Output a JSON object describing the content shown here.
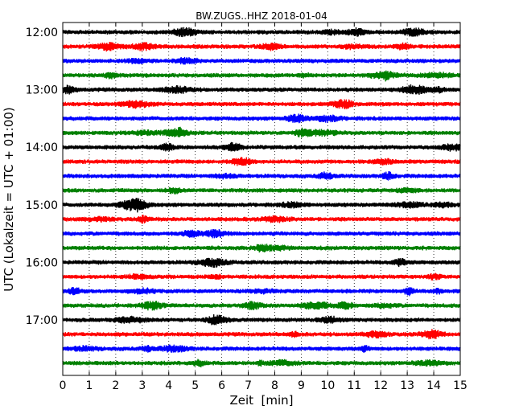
{
  "chart_data": {
    "type": "line",
    "title": "BW.ZUGS..HHZ 2018-01-04",
    "xlabel": "Zeit  [min]",
    "ylabel": "UTC (Lokalzeit = UTC + 01:00)",
    "xlim": [
      0,
      15
    ],
    "x_ticks": [
      "0",
      "1",
      "2",
      "3",
      "4",
      "5",
      "6",
      "7",
      "8",
      "9",
      "10",
      "11",
      "12",
      "13",
      "14",
      "15"
    ],
    "y_ticks": [
      "12:00",
      "13:00",
      "14:00",
      "15:00",
      "16:00",
      "17:00"
    ],
    "grid": "vertical dotted at each minute",
    "traces_per_hour": 4,
    "trace_colors": [
      "#000000",
      "#ff0000",
      "#0000ff",
      "#008000"
    ],
    "series": [
      {
        "start": "12:00",
        "color": "#000000"
      },
      {
        "start": "12:15",
        "color": "#ff0000"
      },
      {
        "start": "12:30",
        "color": "#0000ff"
      },
      {
        "start": "12:45",
        "color": "#008000"
      },
      {
        "start": "13:00",
        "color": "#000000"
      },
      {
        "start": "13:15",
        "color": "#ff0000"
      },
      {
        "start": "13:30",
        "color": "#0000ff"
      },
      {
        "start": "13:45",
        "color": "#008000"
      },
      {
        "start": "14:00",
        "color": "#000000"
      },
      {
        "start": "14:15",
        "color": "#ff0000"
      },
      {
        "start": "14:30",
        "color": "#0000ff"
      },
      {
        "start": "14:45",
        "color": "#008000"
      },
      {
        "start": "15:00",
        "color": "#000000"
      },
      {
        "start": "15:15",
        "color": "#ff0000"
      },
      {
        "start": "15:30",
        "color": "#0000ff"
      },
      {
        "start": "15:45",
        "color": "#008000"
      },
      {
        "start": "16:00",
        "color": "#000000"
      },
      {
        "start": "16:15",
        "color": "#ff0000"
      },
      {
        "start": "16:30",
        "color": "#0000ff"
      },
      {
        "start": "16:45",
        "color": "#008000"
      },
      {
        "start": "17:00",
        "color": "#000000"
      },
      {
        "start": "17:15",
        "color": "#ff0000"
      },
      {
        "start": "17:30",
        "color": "#0000ff"
      },
      {
        "start": "17:45",
        "color": "#008000"
      }
    ]
  }
}
